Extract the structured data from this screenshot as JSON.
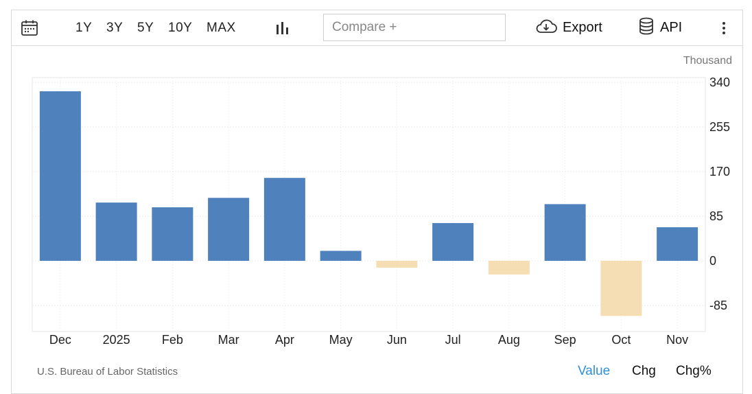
{
  "toolbar": {
    "icons": {
      "calendar": "calendar-icon",
      "chart_type": "bar-chart-icon",
      "export": "cloud-download-icon",
      "api": "database-icon",
      "more": "kebab-menu-icon"
    },
    "ranges": [
      "1Y",
      "3Y",
      "5Y",
      "10Y",
      "MAX"
    ],
    "compare_placeholder": "Compare +",
    "export_label": "Export",
    "api_label": "API"
  },
  "footer": {
    "source": "U.S. Bureau of Labor Statistics",
    "modes": [
      "Value",
      "Chg",
      "Chg%"
    ],
    "active_mode": "Value"
  },
  "colors": {
    "positive": "#4f81bd",
    "negative": "#f5deb3",
    "active_link": "#2f8fd8"
  },
  "chart_data": {
    "type": "bar",
    "unit_label": "Thousand",
    "categories": [
      "Dec",
      "2025",
      "Feb",
      "Mar",
      "Apr",
      "May",
      "Jun",
      "Jul",
      "Aug",
      "Sep",
      "Oct",
      "Nov"
    ],
    "values": [
      323,
      111,
      102,
      120,
      158,
      19,
      -13,
      72,
      -26,
      108,
      -105,
      64
    ],
    "yticks": [
      340,
      255,
      170,
      85,
      0,
      -85
    ],
    "ylim": [
      -140,
      345
    ],
    "grid": true,
    "axis_position": "right"
  }
}
